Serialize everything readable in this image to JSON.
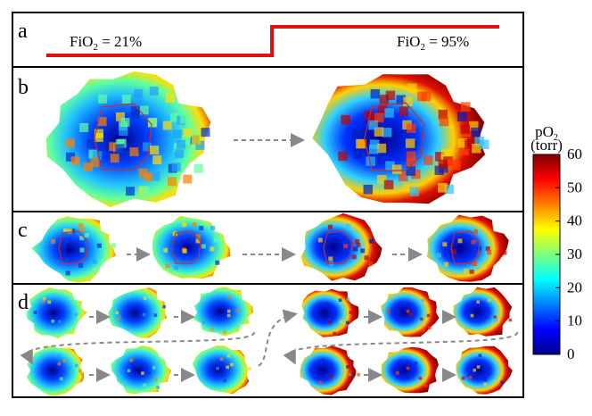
{
  "panels": {
    "a": {
      "label": "a",
      "left": {
        "prefix": "FiO",
        "sub": "2",
        "suffix": " = 21%"
      },
      "right": {
        "prefix": "FiO",
        "sub": "2",
        "suffix": " = 95%"
      }
    },
    "b": {
      "label": "b"
    },
    "c": {
      "label": "c"
    },
    "d": {
      "label": "d"
    }
  },
  "colorbar": {
    "title": "pO",
    "title_sub": "2",
    "unit": "(torr)",
    "lim": [
      0,
      60
    ],
    "ticks": [
      0,
      10,
      20,
      30,
      40,
      50,
      60
    ]
  }
}
